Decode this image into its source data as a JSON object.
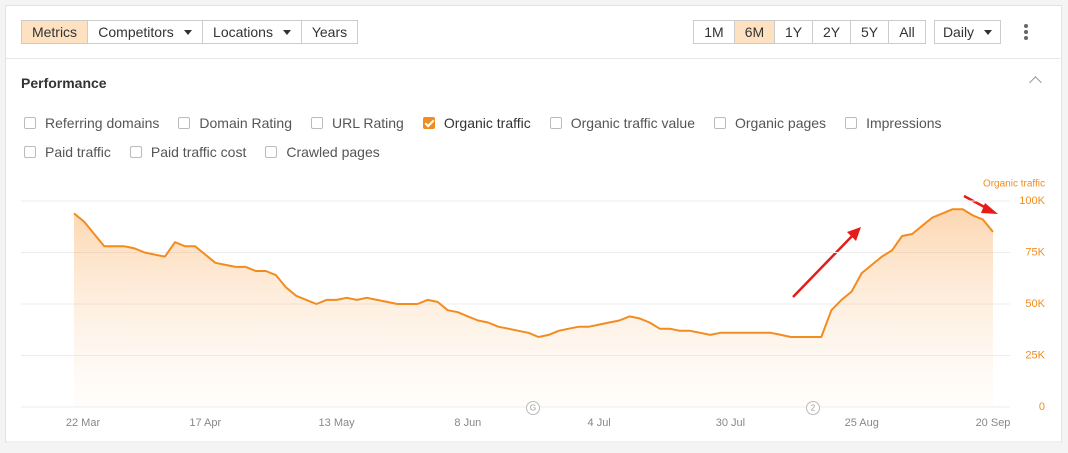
{
  "toolbar": {
    "tabs": [
      {
        "label": "Metrics",
        "active": true,
        "dropdown": false
      },
      {
        "label": "Competitors",
        "active": false,
        "dropdown": true
      },
      {
        "label": "Locations",
        "active": false,
        "dropdown": true
      },
      {
        "label": "Years",
        "active": false,
        "dropdown": false
      }
    ],
    "ranges": [
      {
        "label": "1M",
        "active": false
      },
      {
        "label": "6M",
        "active": true
      },
      {
        "label": "1Y",
        "active": false
      },
      {
        "label": "2Y",
        "active": false
      },
      {
        "label": "5Y",
        "active": false
      },
      {
        "label": "All",
        "active": false
      }
    ],
    "interval": "Daily"
  },
  "panel": {
    "title": "Performance",
    "checkboxes": [
      {
        "label": "Referring domains",
        "checked": false
      },
      {
        "label": "Domain Rating",
        "checked": false
      },
      {
        "label": "URL Rating",
        "checked": false
      },
      {
        "label": "Organic traffic",
        "checked": true
      },
      {
        "label": "Organic traffic value",
        "checked": false
      },
      {
        "label": "Organic pages",
        "checked": false
      },
      {
        "label": "Impressions",
        "checked": false
      },
      {
        "label": "Paid traffic",
        "checked": false
      },
      {
        "label": "Paid traffic cost",
        "checked": false
      },
      {
        "label": "Crawled pages",
        "checked": false
      }
    ]
  },
  "chart_data": {
    "type": "area",
    "categories": [
      "22 Mar",
      null,
      null,
      null,
      null,
      null,
      null,
      null,
      null,
      null,
      null,
      null,
      null,
      "17 Apr",
      null,
      null,
      null,
      null,
      null,
      null,
      null,
      null,
      null,
      null,
      null,
      null,
      "13 May",
      null,
      null,
      null,
      null,
      null,
      null,
      null,
      null,
      null,
      null,
      null,
      null,
      "8 Jun",
      null,
      null,
      null,
      null,
      null,
      null,
      null,
      null,
      null,
      null,
      null,
      null,
      "4 Jul",
      null,
      null,
      null,
      null,
      null,
      null,
      null,
      null,
      null,
      null,
      null,
      null,
      "30 Jul",
      null,
      null,
      null,
      null,
      null,
      null,
      null,
      null,
      null,
      null,
      null,
      null,
      "25 Aug",
      null,
      null,
      null,
      null,
      null,
      null,
      null,
      null,
      null,
      null,
      null,
      null,
      "20 Sep"
    ],
    "series": [
      {
        "name": "Organic traffic",
        "color": "#f28c1f",
        "values": [
          94000,
          90000,
          84000,
          78000,
          78000,
          78000,
          77000,
          75000,
          74000,
          73000,
          80000,
          78000,
          78000,
          74000,
          70000,
          69000,
          68000,
          68000,
          66000,
          66000,
          64000,
          58000,
          54000,
          52000,
          50000,
          52000,
          52000,
          53000,
          52000,
          53000,
          52000,
          51000,
          50000,
          50000,
          50000,
          52000,
          51000,
          47000,
          46000,
          44000,
          42000,
          41000,
          39000,
          38000,
          37000,
          36000,
          34000,
          35000,
          37000,
          38000,
          39000,
          39000,
          40000,
          41000,
          42000,
          44000,
          43000,
          41000,
          38000,
          38000,
          37000,
          37000,
          36000,
          35000,
          36000,
          36000,
          36000,
          36000,
          36000,
          36000,
          35000,
          34000,
          34000,
          34000,
          34000,
          47000,
          52000,
          56000,
          65000,
          69000,
          73000,
          76000,
          83000,
          84000,
          88000,
          92000,
          94000,
          96000,
          96000,
          93000,
          91000,
          85000
        ]
      }
    ],
    "ylim": [
      0,
      100000
    ],
    "yticks": [
      0,
      {
        "value": 25000,
        "label": "25K"
      },
      {
        "value": 50000,
        "label": "50K"
      },
      {
        "value": 75000,
        "label": "75K"
      },
      {
        "value": 100000,
        "label": "100K"
      }
    ],
    "grid": true,
    "markers": [
      "G",
      "2"
    ]
  }
}
